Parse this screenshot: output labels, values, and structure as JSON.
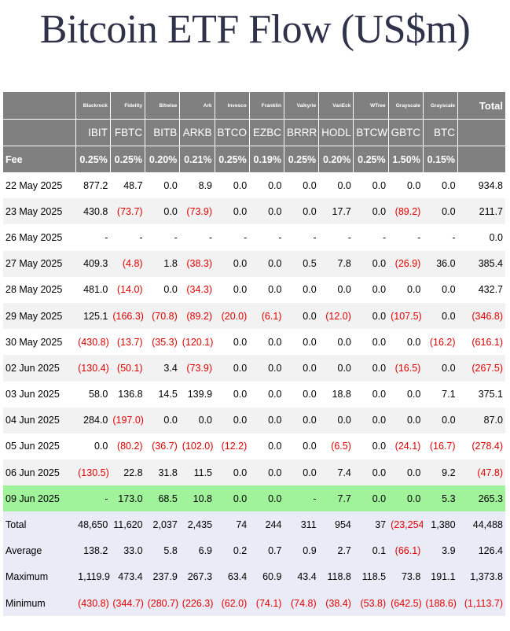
{
  "title": "Bitcoin ETF Flow (US$m)",
  "colors": {
    "header_bg": "#808080",
    "negative": "#e00000",
    "highlight": "#a0f39a",
    "summary_bg": "#e9ecf6"
  },
  "header": {
    "issuers": [
      "Blackrock",
      "Fidelity",
      "Bitwise",
      "Ark",
      "Invesco",
      "Franklin",
      "Valkyrie",
      "VanEck",
      "WTree",
      "Grayscale",
      "Grayscale"
    ],
    "total_label": "Total",
    "tickers": [
      "IBIT",
      "FBTC",
      "BITB",
      "ARKB",
      "BTCO",
      "EZBC",
      "BRRR",
      "HODL",
      "BTCW",
      "GBTC",
      "BTC"
    ],
    "fee_label": "Fee",
    "fees": [
      "0.25%",
      "0.25%",
      "0.20%",
      "0.21%",
      "0.25%",
      "0.19%",
      "0.25%",
      "0.20%",
      "0.25%",
      "1.50%",
      "0.15%"
    ]
  },
  "rows": [
    {
      "date": "22 May 2025",
      "values": [
        "877.2",
        "48.7",
        "0.0",
        "8.9",
        "0.0",
        "0.0",
        "0.0",
        "0.0",
        "0.0",
        "0.0",
        "0.0"
      ],
      "total": "934.8"
    },
    {
      "date": "23 May 2025",
      "values": [
        "430.8",
        "(73.7)",
        "0.0",
        "(73.9)",
        "0.0",
        "0.0",
        "0.0",
        "17.7",
        "0.0",
        "(89.2)",
        "0.0"
      ],
      "total": "211.7"
    },
    {
      "date": "26 May 2025",
      "values": [
        "-",
        "-",
        "-",
        "-",
        "-",
        "-",
        "-",
        "-",
        "-",
        "-",
        "-"
      ],
      "total": "0.0"
    },
    {
      "date": "27 May 2025",
      "values": [
        "409.3",
        "(4.8)",
        "1.8",
        "(38.3)",
        "0.0",
        "0.0",
        "0.5",
        "7.8",
        "0.0",
        "(26.9)",
        "36.0"
      ],
      "total": "385.4"
    },
    {
      "date": "28 May 2025",
      "values": [
        "481.0",
        "(14.0)",
        "0.0",
        "(34.3)",
        "0.0",
        "0.0",
        "0.0",
        "0.0",
        "0.0",
        "0.0",
        "0.0"
      ],
      "total": "432.7"
    },
    {
      "date": "29 May 2025",
      "values": [
        "125.1",
        "(166.3)",
        "(70.8)",
        "(89.2)",
        "(20.0)",
        "(6.1)",
        "0.0",
        "(12.0)",
        "0.0",
        "(107.5)",
        "0.0"
      ],
      "total": "(346.8)"
    },
    {
      "date": "30 May 2025",
      "values": [
        "(430.8)",
        "(13.7)",
        "(35.3)",
        "(120.1)",
        "0.0",
        "0.0",
        "0.0",
        "0.0",
        "0.0",
        "0.0",
        "(16.2)"
      ],
      "total": "(616.1)"
    },
    {
      "date": "02 Jun 2025",
      "values": [
        "(130.4)",
        "(50.1)",
        "3.4",
        "(73.9)",
        "0.0",
        "0.0",
        "0.0",
        "0.0",
        "0.0",
        "(16.5)",
        "0.0"
      ],
      "total": "(267.5)"
    },
    {
      "date": "03 Jun 2025",
      "values": [
        "58.0",
        "136.8",
        "14.5",
        "139.9",
        "0.0",
        "0.0",
        "0.0",
        "18.8",
        "0.0",
        "0.0",
        "7.1"
      ],
      "total": "375.1"
    },
    {
      "date": "04 Jun 2025",
      "values": [
        "284.0",
        "(197.0)",
        "0.0",
        "0.0",
        "0.0",
        "0.0",
        "0.0",
        "0.0",
        "0.0",
        "0.0",
        "0.0"
      ],
      "total": "87.0"
    },
    {
      "date": "05 Jun 2025",
      "values": [
        "0.0",
        "(80.2)",
        "(36.7)",
        "(102.0)",
        "(12.2)",
        "0.0",
        "0.0",
        "(6.5)",
        "0.0",
        "(24.1)",
        "(16.7)"
      ],
      "total": "(278.4)"
    },
    {
      "date": "06 Jun 2025",
      "values": [
        "(130.5)",
        "22.8",
        "31.8",
        "11.5",
        "0.0",
        "0.0",
        "0.0",
        "7.4",
        "0.0",
        "0.0",
        "9.2"
      ],
      "total": "(47.8)"
    },
    {
      "date": "09 Jun 2025",
      "values": [
        "-",
        "173.0",
        "68.5",
        "10.8",
        "0.0",
        "0.0",
        "-",
        "7.7",
        "0.0",
        "0.0",
        "5.3"
      ],
      "total": "265.3"
    }
  ],
  "summary": [
    {
      "label": "Total",
      "values": [
        "48,650",
        "11,620",
        "2,037",
        "2,435",
        "74",
        "244",
        "311",
        "954",
        "37",
        "(23,254)",
        "1,380"
      ],
      "total": "44,488"
    },
    {
      "label": "Average",
      "values": [
        "138.2",
        "33.0",
        "5.8",
        "6.9",
        "0.2",
        "0.7",
        "0.9",
        "2.7",
        "0.1",
        "(66.1)",
        "3.9"
      ],
      "total": "126.4"
    },
    {
      "label": "Maximum",
      "values": [
        "1,119.9",
        "473.4",
        "237.9",
        "267.3",
        "63.4",
        "60.9",
        "43.4",
        "118.8",
        "118.5",
        "73.8",
        "191.1"
      ],
      "total": "1,373.8"
    },
    {
      "label": "Minimum",
      "values": [
        "(430.8)",
        "(344.7)",
        "(280.7)",
        "(226.3)",
        "(62.0)",
        "(74.1)",
        "(74.8)",
        "(38.4)",
        "(53.8)",
        "(642.5)",
        "(188.6)"
      ],
      "total": "(1,113.7)"
    }
  ]
}
